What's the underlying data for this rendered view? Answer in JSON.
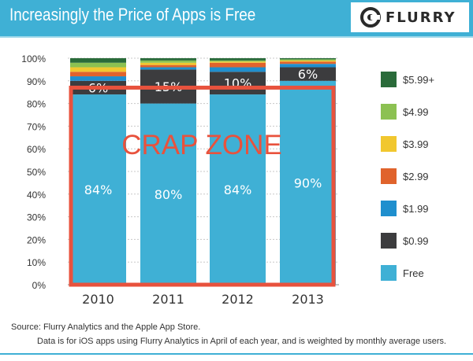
{
  "header": {
    "title": "Increasingly the Price of Apps is Free",
    "logo_text": "FLURRY",
    "banner_color": "#3fb0d5"
  },
  "chart_data": {
    "type": "bar",
    "stacked": true,
    "categories": [
      "2010",
      "2011",
      "2012",
      "2013"
    ],
    "ylim": [
      0,
      100
    ],
    "yticks": [
      "0%",
      "10%",
      "20%",
      "30%",
      "40%",
      "50%",
      "60%",
      "70%",
      "80%",
      "90%",
      "100%"
    ],
    "series": [
      {
        "name": "Free",
        "color": "#3fb0d5",
        "values": [
          84,
          80,
          84,
          90
        ],
        "labels": [
          "84%",
          "80%",
          "84%",
          "90%"
        ]
      },
      {
        "name": "$0.99",
        "color": "#3c3c3e",
        "values": [
          6,
          15,
          10,
          6
        ],
        "labels": [
          "6%",
          "15%",
          "10%",
          "6%"
        ]
      },
      {
        "name": "$1.99",
        "color": "#1f8fce",
        "values": [
          2,
          1,
          2,
          1.5
        ]
      },
      {
        "name": "$2.99",
        "color": "#e0632c",
        "values": [
          2,
          1,
          2,
          1
        ]
      },
      {
        "name": "$3.99",
        "color": "#f1c72f",
        "values": [
          2,
          1,
          0.5,
          0.5
        ]
      },
      {
        "name": "$4.99",
        "color": "#8cc152",
        "values": [
          2,
          1,
          0.5,
          0.5
        ]
      },
      {
        "name": "$5.99+",
        "color": "#2a6b3a",
        "values": [
          2,
          1,
          1,
          0.5
        ]
      }
    ],
    "legend_order": [
      "$5.99+",
      "$4.99",
      "$3.99",
      "$2.99",
      "$1.99",
      "$0.99",
      "Free"
    ],
    "legend_position": "right",
    "annotation": {
      "text": "CRAP ZONE",
      "color": "#e8523d",
      "range": [
        0,
        87
      ]
    }
  },
  "footer": {
    "source": "Source: Flurry Analytics and the Apple App Store.",
    "note": "Data is for iOS apps using Flurry Analytics in April of each year, and is weighted by monthly average users."
  }
}
